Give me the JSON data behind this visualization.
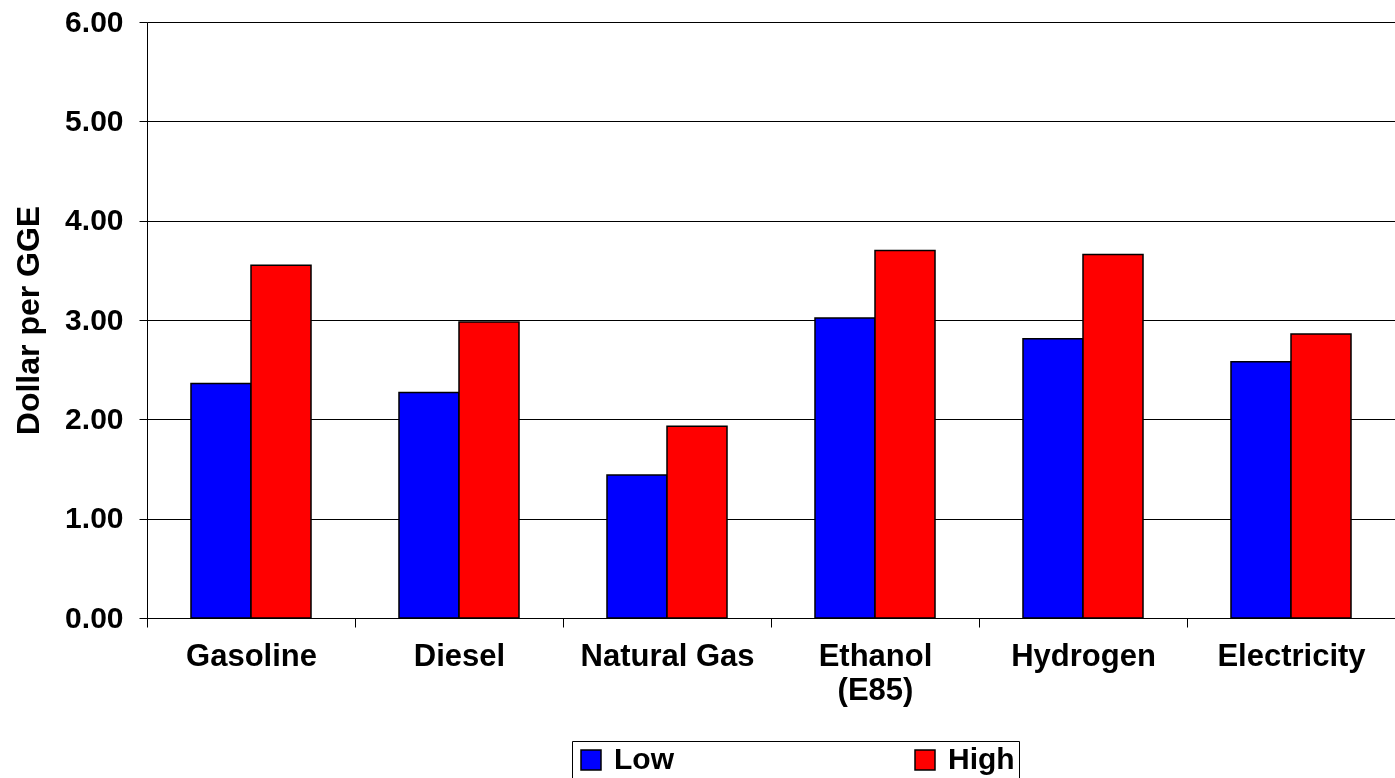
{
  "chart_data": {
    "type": "bar",
    "ylabel": "Dollar per GGE",
    "categories": [
      "Gasoline",
      "Diesel",
      "Natural Gas",
      "Ethanol\n(E85)",
      "Hydrogen",
      "Electricity"
    ],
    "series": [
      {
        "name": "Low",
        "color": "#0000ff",
        "values": [
          2.36,
          2.27,
          1.44,
          3.02,
          2.81,
          2.58
        ]
      },
      {
        "name": "High",
        "color": "#ff0000",
        "values": [
          3.55,
          2.98,
          1.93,
          3.7,
          3.66,
          2.86
        ]
      }
    ],
    "ylim": [
      0,
      6
    ],
    "yticks": [
      {
        "value": 0,
        "label": "0.00"
      },
      {
        "value": 1,
        "label": "1.00"
      },
      {
        "value": 2,
        "label": "2.00"
      },
      {
        "value": 3,
        "label": "3.00"
      },
      {
        "value": 4,
        "label": "4.00"
      },
      {
        "value": 5,
        "label": "5.00"
      },
      {
        "value": 6,
        "label": "6.00"
      }
    ],
    "grid": "y",
    "legend": "bottom"
  }
}
